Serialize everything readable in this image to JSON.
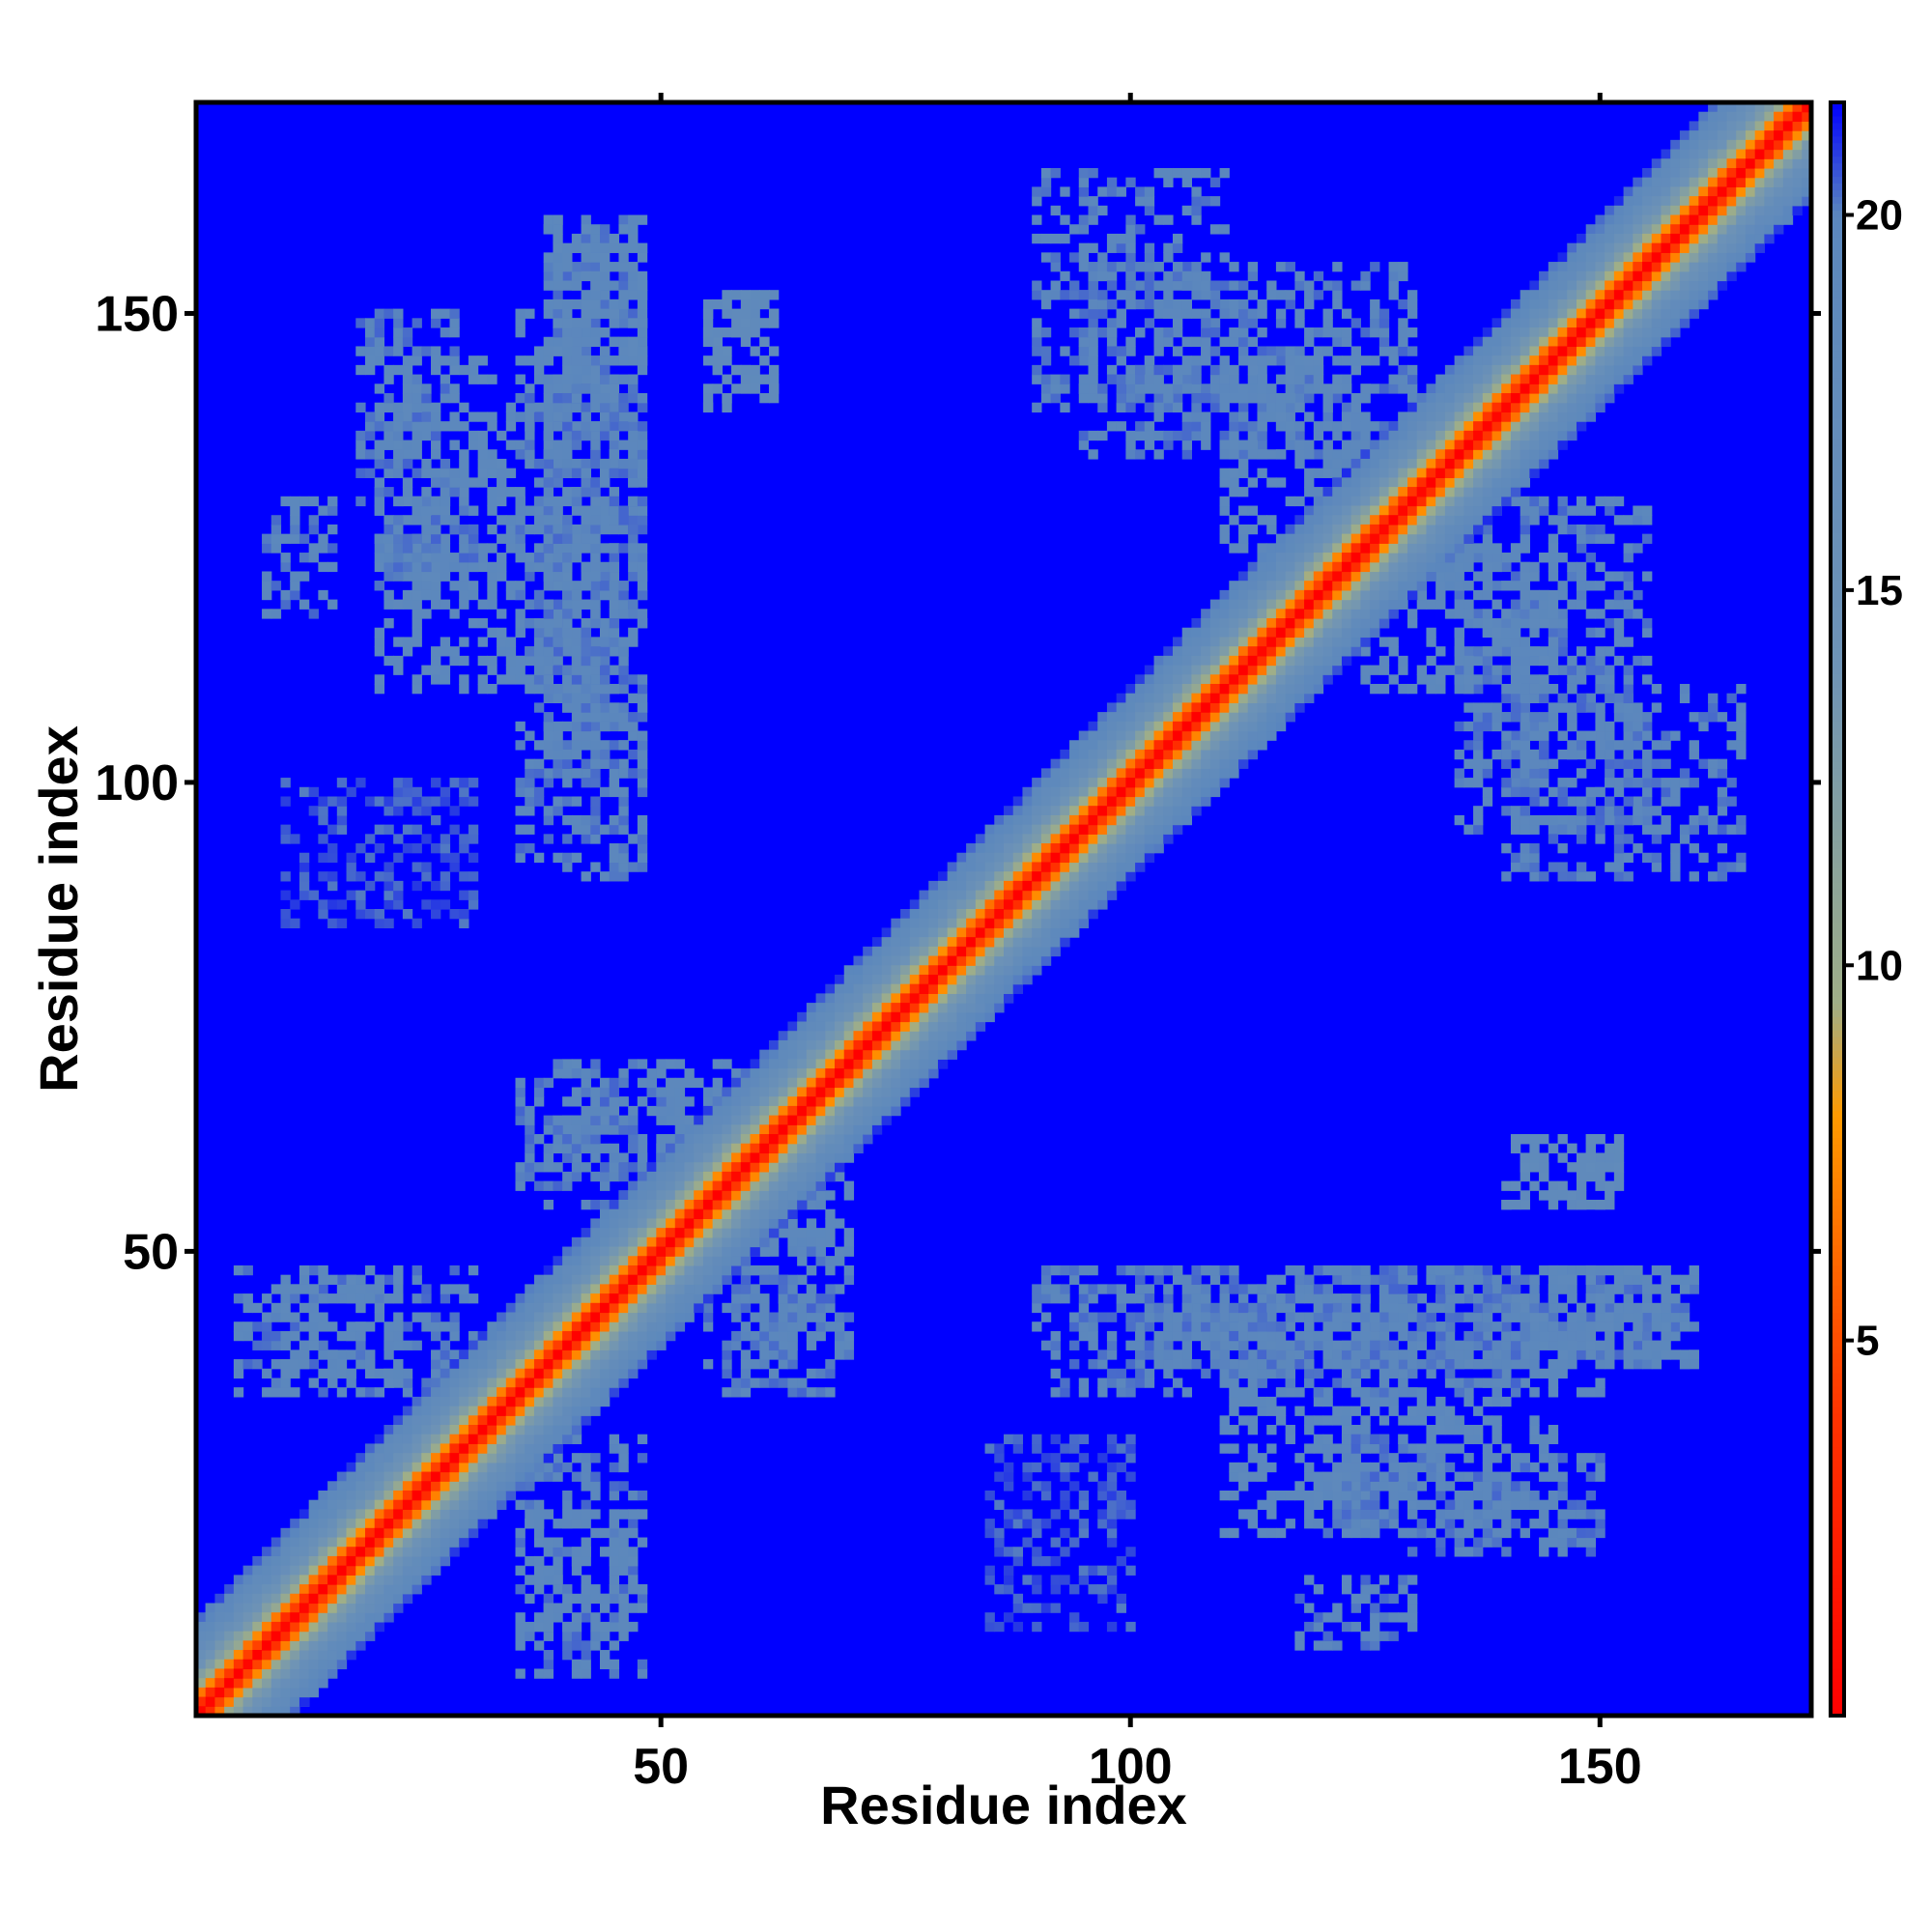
{
  "chart_data": {
    "type": "heatmap",
    "title": "",
    "xlabel": "Residue index",
    "ylabel": "Residue index",
    "xlim": [
      1,
      172
    ],
    "ylim": [
      1,
      172
    ],
    "x_ticks": [
      50,
      100,
      150
    ],
    "y_ticks": [
      50,
      100,
      150
    ],
    "n_residues": 172,
    "grid": false,
    "colorbar": {
      "placement": "right",
      "range": [
        0,
        21.5
      ],
      "ticks": [
        5,
        10,
        15,
        20
      ],
      "stops": [
        {
          "value": 0,
          "color": "#ff0000"
        },
        {
          "value": 4,
          "color": "#ff3300"
        },
        {
          "value": 8,
          "color": "#ff9a00"
        },
        {
          "value": 9.5,
          "color": "#9fae88"
        },
        {
          "value": 14,
          "color": "#6e93b6"
        },
        {
          "value": 20,
          "color": "#5b87bd"
        },
        {
          "value": 21.5,
          "color": "#0000ff"
        }
      ]
    },
    "diagonal_band": [
      {
        "offset": 0,
        "value": 0
      },
      {
        "offset": 1,
        "value": 4
      },
      {
        "offset": 2,
        "value": 7
      },
      {
        "offset": 3,
        "value": 10
      },
      {
        "offset": 4,
        "value": 12.5
      },
      {
        "offset": 5,
        "value": 14
      },
      {
        "offset": 6,
        "value": 16
      },
      {
        "offset": 7,
        "value": 17.5
      },
      {
        "offset": 8,
        "value": 18.5
      },
      {
        "offset": 9,
        "value": 19.5
      },
      {
        "offset": 10,
        "value": 20.5
      }
    ],
    "background_value": 21.5,
    "contact_regions": [
      {
        "x": [
          2,
          12
        ],
        "y": [
          2,
          12
        ],
        "value": 19
      },
      {
        "x": [
          20,
          45
        ],
        "y": [
          110,
          145
        ],
        "value": 19.5
      },
      {
        "x": [
          38,
          48
        ],
        "y": [
          100,
          160
        ],
        "value": 20
      },
      {
        "x": [
          55,
          62
        ],
        "y": [
          140,
          152
        ],
        "value": 18.5
      },
      {
        "x": [
          40,
          65
        ],
        "y": [
          60,
          70
        ],
        "value": 19.5
      },
      {
        "x": [
          5,
          30
        ],
        "y": [
          35,
          48
        ],
        "value": 20
      },
      {
        "x": [
          55,
          70
        ],
        "y": [
          35,
          50
        ],
        "value": 20
      },
      {
        "x": [
          90,
          125
        ],
        "y": [
          35,
          48
        ],
        "value": 20
      },
      {
        "x": [
          125,
          150
        ],
        "y": [
          35,
          48
        ],
        "value": 20
      },
      {
        "x": [
          120,
          130
        ],
        "y": [
          20,
          30
        ],
        "value": 20
      },
      {
        "x": [
          130,
          150
        ],
        "y": [
          18,
          28
        ],
        "value": 20
      },
      {
        "x": [
          140,
          152
        ],
        "y": [
          55,
          62
        ],
        "value": 18.5
      },
      {
        "x": [
          145,
          160
        ],
        "y": [
          38,
          48
        ],
        "value": 19.5
      },
      {
        "x": [
          135,
          155
        ],
        "y": [
          95,
          130
        ],
        "value": 20
      },
      {
        "x": [
          90,
          110
        ],
        "y": [
          140,
          165
        ],
        "value": 20
      },
      {
        "x": [
          110,
          125
        ],
        "y": [
          125,
          145
        ],
        "value": 19.5
      },
      {
        "x": [
          118,
          130
        ],
        "y": [
          8,
          15
        ],
        "value": 20
      },
      {
        "x": [
          85,
          100
        ],
        "y": [
          10,
          30
        ],
        "value": 20.5
      },
      {
        "x": [
          36,
          48
        ],
        "y": [
          10,
          22
        ],
        "value": 19.5
      }
    ]
  }
}
